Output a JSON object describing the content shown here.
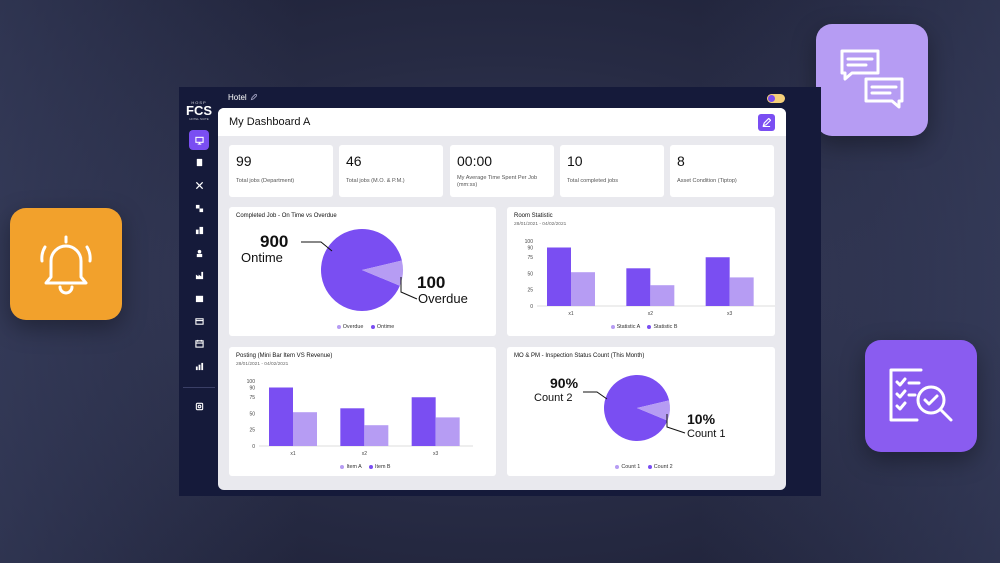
{
  "app": {
    "logo": {
      "line1": "HOSP",
      "line2": "FCS",
      "line3": "HOTEL SUITE"
    },
    "breadcrumb": "Hotel",
    "dashboard_title": "My Dashboard A"
  },
  "colors": {
    "primary": "#7a4ef2",
    "secondary": "#b69cf3",
    "orange": "#f2a12c",
    "dark": "#151a3a"
  },
  "stats": [
    {
      "value": "99",
      "label": "Total jobs (Department)"
    },
    {
      "value": "46",
      "label": "Total jobs (M.O. & P.M.)"
    },
    {
      "value": "00:00",
      "label": "My Average Time Spent Per Job (mm:ss)"
    },
    {
      "value": "10",
      "label": "Total completed jobs"
    },
    {
      "value": "8",
      "label": "Asset Condition (Tiptop)"
    }
  ],
  "cards": {
    "completed": {
      "title": "Completed Job - On Time vs Overdue",
      "ontime_value": "900",
      "ontime_label": "Ontime",
      "overdue_value": "100",
      "overdue_label": "Overdue",
      "legend": [
        "Overdue",
        "Ontime"
      ]
    },
    "room": {
      "title": "Room Statistic",
      "date": "28/01/2021 - 04/02/2021",
      "legend": [
        "Statistic A",
        "Statistic B"
      ]
    },
    "posting": {
      "title": "Posting (Mini Bar Item VS Revenue)",
      "date": "28/01/2021 - 04/02/2021",
      "legend": [
        "Item A",
        "Item B"
      ]
    },
    "inspection": {
      "title": "MO & PM - Inspection Status Count (This Month)",
      "c2_value": "90%",
      "c2_label": "Count 2",
      "c1_value": "10%",
      "c1_label": "Count 1",
      "legend": [
        "Count 1",
        "Count 2"
      ]
    }
  },
  "chart_data": [
    {
      "type": "pie",
      "title": "Completed Job - On Time vs Overdue",
      "slices": [
        {
          "name": "Ontime",
          "value": 900
        },
        {
          "name": "Overdue",
          "value": 100
        }
      ]
    },
    {
      "type": "bar",
      "title": "Room Statistic",
      "categories": [
        "x1",
        "x2",
        "x3"
      ],
      "yticks": [
        0,
        25,
        50,
        75,
        90,
        100
      ],
      "ylim": [
        0,
        100
      ],
      "series": [
        {
          "name": "Statistic B",
          "values": [
            90,
            58,
            75
          ]
        },
        {
          "name": "Statistic A",
          "values": [
            52,
            32,
            44
          ]
        }
      ]
    },
    {
      "type": "bar",
      "title": "Posting (Mini Bar Item VS Revenue)",
      "categories": [
        "x1",
        "x2",
        "x3"
      ],
      "yticks": [
        0,
        25,
        50,
        75,
        90,
        100
      ],
      "ylim": [
        0,
        100
      ],
      "series": [
        {
          "name": "Item B",
          "values": [
            90,
            58,
            75
          ]
        },
        {
          "name": "Item A",
          "values": [
            52,
            32,
            44
          ]
        }
      ]
    },
    {
      "type": "pie",
      "title": "MO & PM - Inspection Status Count (This Month)",
      "slices": [
        {
          "name": "Count 2",
          "value": 90
        },
        {
          "name": "Count 1",
          "value": 10
        }
      ]
    }
  ]
}
